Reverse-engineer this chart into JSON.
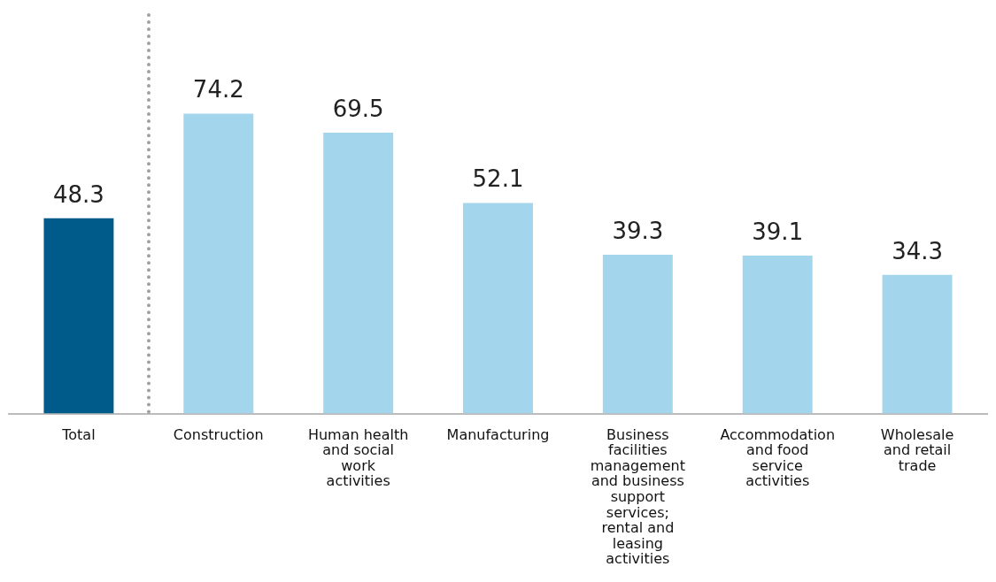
{
  "chart_data": {
    "type": "bar",
    "categories": [
      "Total",
      "Construction",
      "Human health and social work activities",
      "Manufacturing",
      "Business facilities management and business support services; rental and leasing activities",
      "Accommodation and food service activities",
      "Wholesale and retail trade"
    ],
    "values": [
      48.3,
      74.2,
      69.5,
      52.1,
      39.3,
      39.1,
      34.3
    ],
    "colors": [
      "#005b8a",
      "#a3d5ec",
      "#a3d5ec",
      "#a3d5ec",
      "#a3d5ec",
      "#a3d5ec",
      "#a3d5ec"
    ],
    "data_labels": true,
    "grid": false,
    "legend": false
  }
}
